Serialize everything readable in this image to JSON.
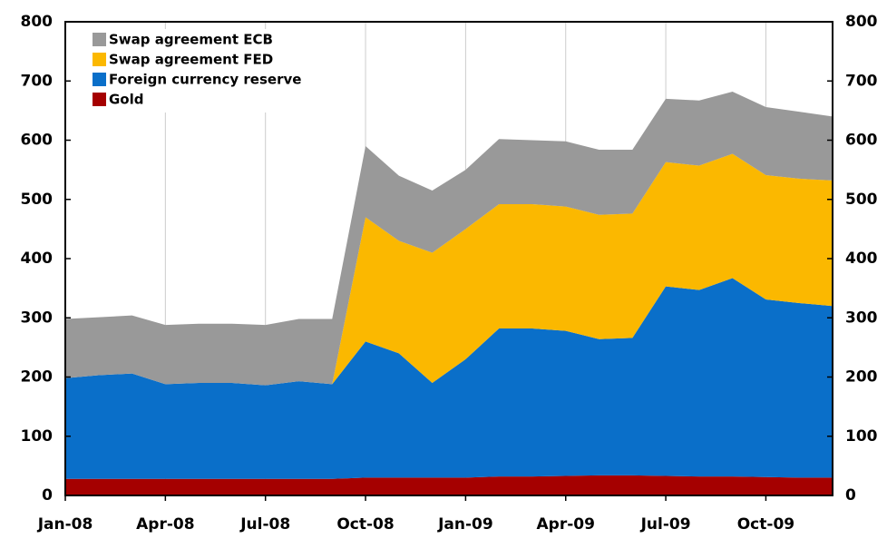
{
  "chart_data": {
    "type": "stacked_area",
    "categories": [
      "Jan-08",
      null,
      null,
      "Apr-08",
      null,
      null,
      "Jul-08",
      null,
      null,
      "Oct-08",
      null,
      null,
      "Jan-09",
      null,
      null,
      "Apr-09",
      null,
      null,
      "Jul-09",
      null,
      null,
      "Oct-09",
      null,
      null
    ],
    "series": [
      {
        "name": "Gold",
        "color": "#a50000",
        "values": [
          28,
          28,
          28,
          28,
          28,
          28,
          28,
          28,
          28,
          30,
          30,
          30,
          30,
          32,
          32,
          33,
          34,
          34,
          33,
          32,
          32,
          31,
          30,
          30
        ]
      },
      {
        "name": "Foreign currency reserve",
        "color": "#0a6fc9",
        "values": [
          170,
          175,
          178,
          160,
          162,
          162,
          158,
          165,
          160,
          230,
          210,
          160,
          200,
          250,
          250,
          245,
          230,
          232,
          320,
          315,
          335,
          300,
          295,
          290
        ]
      },
      {
        "name": "Swap agreement FED",
        "color": "#fbb800",
        "values": [
          0,
          0,
          0,
          0,
          0,
          0,
          0,
          0,
          0,
          210,
          190,
          220,
          220,
          210,
          210,
          210,
          210,
          210,
          210,
          210,
          210,
          210,
          210,
          212
        ]
      },
      {
        "name": "Swap agreement ECB",
        "color": "#999999",
        "values": [
          100,
          98,
          98,
          100,
          100,
          100,
          102,
          105,
          110,
          120,
          110,
          105,
          100,
          110,
          108,
          110,
          110,
          108,
          107,
          110,
          105,
          115,
          113,
          108
        ]
      }
    ],
    "ylim": [
      0,
      800
    ],
    "yticks": [
      0,
      100,
      200,
      300,
      400,
      500,
      600,
      700,
      800
    ],
    "y2lim": [
      0,
      800
    ],
    "y2ticks": [
      0,
      100,
      200,
      300,
      400,
      500,
      600,
      700,
      800
    ],
    "grid": "x",
    "legend": "top-left"
  }
}
